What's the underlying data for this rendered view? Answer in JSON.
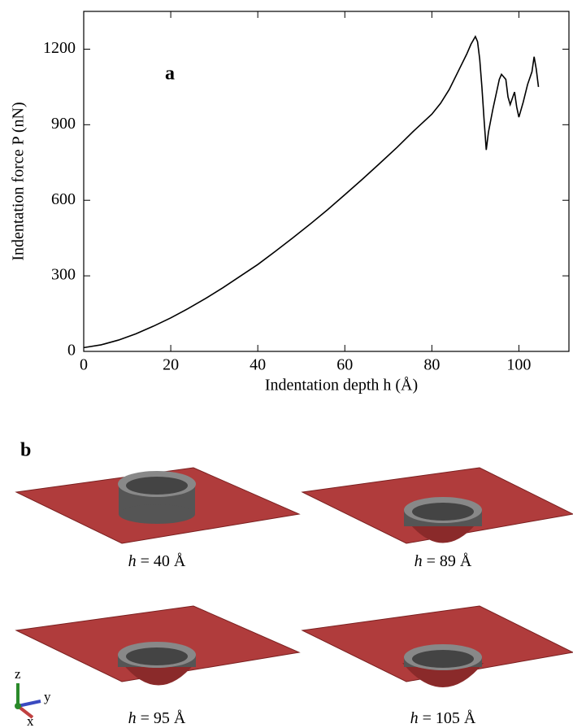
{
  "chart_data": {
    "type": "line",
    "panel_label": "a",
    "xlabel": "Indentation depth h (Å)",
    "ylabel": "Indentation force P (nN)",
    "x": [
      0,
      4,
      8,
      12,
      16,
      20,
      24,
      28,
      32,
      36,
      40,
      44,
      48,
      52,
      56,
      60,
      64,
      68,
      72,
      76,
      80,
      82,
      84,
      86,
      88,
      89,
      90,
      90.5,
      91,
      91.5,
      92,
      92.5,
      93,
      94,
      95,
      95.5,
      96,
      97,
      97.5,
      98,
      99,
      99.5,
      100,
      101,
      102,
      103,
      103.5,
      104,
      104.5
    ],
    "series": [
      {
        "color": "#000000",
        "values": [
          15,
          26,
          45,
          70,
          100,
          133,
          170,
          210,
          253,
          299,
          345,
          397,
          450,
          505,
          562,
          622,
          683,
          746,
          810,
          878,
          942,
          985,
          1040,
          1110,
          1180,
          1220,
          1250,
          1230,
          1160,
          1050,
          920,
          800,
          870,
          960,
          1040,
          1080,
          1100,
          1080,
          1010,
          980,
          1030,
          970,
          930,
          990,
          1060,
          1110,
          1170,
          1120,
          1050
        ]
      }
    ],
    "xlim": [
      0,
      111.5
    ],
    "ylim": [
      0,
      1350
    ],
    "xticks": [
      0,
      20,
      40,
      60,
      80,
      100
    ],
    "yticks": [
      0,
      300,
      600,
      900,
      1200
    ]
  },
  "panel_b": {
    "label": "b",
    "panels": [
      {
        "symbol": "h",
        "text": "= 40 Å"
      },
      {
        "symbol": "h",
        "text": "= 89 Å"
      },
      {
        "symbol": "h",
        "text": "= 95 Å"
      },
      {
        "symbol": "h",
        "text": "= 105 Å"
      }
    ],
    "axes_triad": {
      "z": "z",
      "y": "y",
      "x": "x"
    }
  }
}
